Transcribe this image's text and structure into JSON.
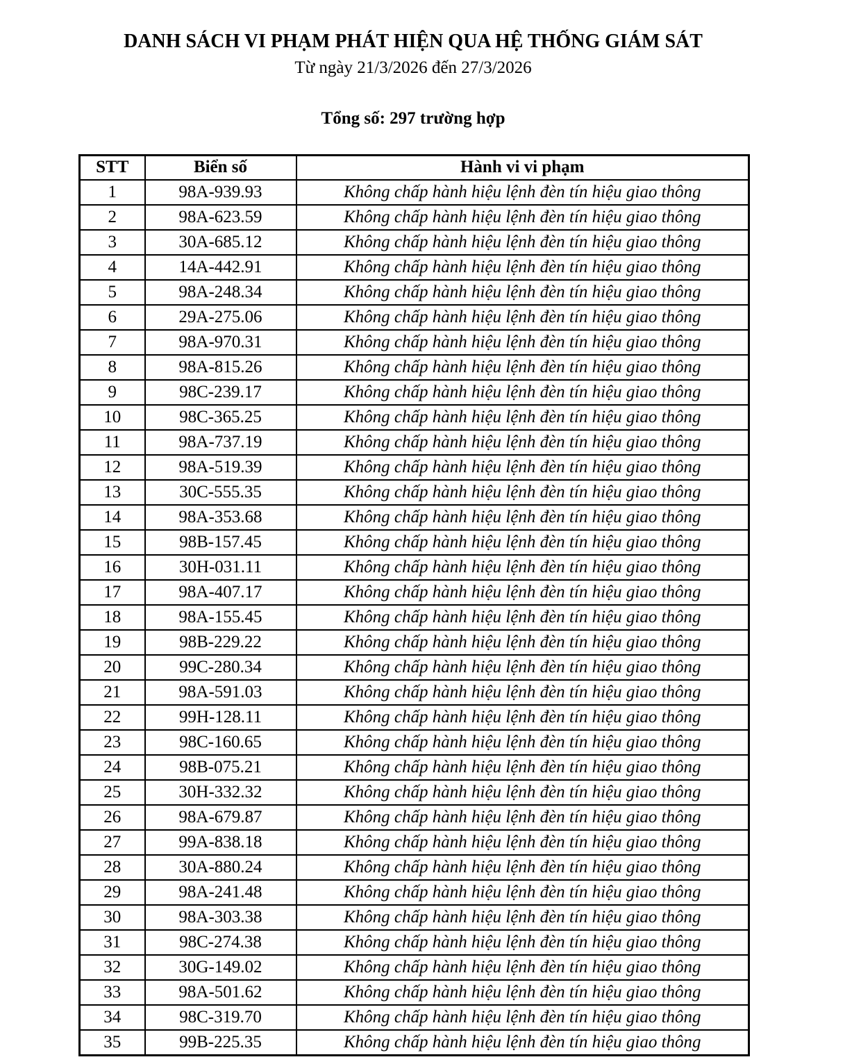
{
  "page": {
    "title": "DANH SÁCH VI PHẠM PHÁT HIỆN QUA HỆ THỐNG GIÁM SÁT",
    "date_range": "Từ ngày 21/3/2026 đến 27/3/2026",
    "total": "Tổng số: 297 trường hợp"
  },
  "table": {
    "columns": [
      "STT",
      "Biển số",
      "Hành vi vi phạm"
    ],
    "rows": [
      {
        "stt": "1",
        "plate": "98A-939.93",
        "violation": "Không chấp hành hiệu lệnh đèn tín hiệu giao thông"
      },
      {
        "stt": "2",
        "plate": "98A-623.59",
        "violation": "Không chấp hành hiệu lệnh đèn tín hiệu giao thông"
      },
      {
        "stt": "3",
        "plate": "30A-685.12",
        "violation": "Không chấp hành hiệu lệnh đèn tín hiệu giao thông"
      },
      {
        "stt": "4",
        "plate": "14A-442.91",
        "violation": "Không chấp hành hiệu lệnh đèn tín hiệu giao thông"
      },
      {
        "stt": "5",
        "plate": "98A-248.34",
        "violation": "Không chấp hành hiệu lệnh đèn tín hiệu giao thông"
      },
      {
        "stt": "6",
        "plate": "29A-275.06",
        "violation": "Không chấp hành hiệu lệnh đèn tín hiệu giao thông"
      },
      {
        "stt": "7",
        "plate": "98A-970.31",
        "violation": "Không chấp hành hiệu lệnh đèn tín hiệu giao thông"
      },
      {
        "stt": "8",
        "plate": "98A-815.26",
        "violation": "Không chấp hành hiệu lệnh đèn tín hiệu giao thông"
      },
      {
        "stt": "9",
        "plate": "98C-239.17",
        "violation": "Không chấp hành hiệu lệnh đèn tín hiệu giao thông"
      },
      {
        "stt": "10",
        "plate": "98C-365.25",
        "violation": "Không chấp hành hiệu lệnh đèn tín hiệu giao thông"
      },
      {
        "stt": "11",
        "plate": "98A-737.19",
        "violation": "Không chấp hành hiệu lệnh đèn tín hiệu giao thông"
      },
      {
        "stt": "12",
        "plate": "98A-519.39",
        "violation": "Không chấp hành hiệu lệnh đèn tín hiệu giao thông"
      },
      {
        "stt": "13",
        "plate": "30C-555.35",
        "violation": "Không chấp hành hiệu lệnh đèn tín hiệu giao thông"
      },
      {
        "stt": "14",
        "plate": "98A-353.68",
        "violation": "Không chấp hành hiệu lệnh đèn tín hiệu giao thông"
      },
      {
        "stt": "15",
        "plate": "98B-157.45",
        "violation": "Không chấp hành hiệu lệnh đèn tín hiệu giao thông"
      },
      {
        "stt": "16",
        "plate": "30H-031.11",
        "violation": "Không chấp hành hiệu lệnh đèn tín hiệu giao thông"
      },
      {
        "stt": "17",
        "plate": "98A-407.17",
        "violation": "Không chấp hành hiệu lệnh đèn tín hiệu giao thông"
      },
      {
        "stt": "18",
        "plate": "98A-155.45",
        "violation": "Không chấp hành hiệu lệnh đèn tín hiệu giao thông"
      },
      {
        "stt": "19",
        "plate": "98B-229.22",
        "violation": "Không chấp hành hiệu lệnh đèn tín hiệu giao thông"
      },
      {
        "stt": "20",
        "plate": "99C-280.34",
        "violation": "Không chấp hành hiệu lệnh đèn tín hiệu giao thông"
      },
      {
        "stt": "21",
        "plate": "98A-591.03",
        "violation": "Không chấp hành hiệu lệnh đèn tín hiệu giao thông"
      },
      {
        "stt": "22",
        "plate": "99H-128.11",
        "violation": "Không chấp hành hiệu lệnh đèn tín hiệu giao thông"
      },
      {
        "stt": "23",
        "plate": "98C-160.65",
        "violation": "Không chấp hành hiệu lệnh đèn tín hiệu giao thông"
      },
      {
        "stt": "24",
        "plate": "98B-075.21",
        "violation": "Không chấp hành hiệu lệnh đèn tín hiệu giao thông"
      },
      {
        "stt": "25",
        "plate": "30H-332.32",
        "violation": "Không chấp hành hiệu lệnh đèn tín hiệu giao thông"
      },
      {
        "stt": "26",
        "plate": "98A-679.87",
        "violation": "Không chấp hành hiệu lệnh đèn tín hiệu giao thông"
      },
      {
        "stt": "27",
        "plate": "99A-838.18",
        "violation": "Không chấp hành hiệu lệnh đèn tín hiệu giao thông"
      },
      {
        "stt": "28",
        "plate": "30A-880.24",
        "violation": "Không chấp hành hiệu lệnh đèn tín hiệu giao thông"
      },
      {
        "stt": "29",
        "plate": "98A-241.48",
        "violation": "Không chấp hành hiệu lệnh đèn tín hiệu giao thông"
      },
      {
        "stt": "30",
        "plate": "98A-303.38",
        "violation": "Không chấp hành hiệu lệnh đèn tín hiệu giao thông"
      },
      {
        "stt": "31",
        "plate": "98C-274.38",
        "violation": "Không chấp hành hiệu lệnh đèn tín hiệu giao thông"
      },
      {
        "stt": "32",
        "plate": "30G-149.02",
        "violation": "Không chấp hành hiệu lệnh đèn tín hiệu giao thông"
      },
      {
        "stt": "33",
        "plate": "98A-501.62",
        "violation": "Không chấp hành hiệu lệnh đèn tín hiệu giao thông"
      },
      {
        "stt": "34",
        "plate": "98C-319.70",
        "violation": "Không chấp hành hiệu lệnh đèn tín hiệu giao thông"
      },
      {
        "stt": "35",
        "plate": "99B-225.35",
        "violation": "Không chấp hành hiệu lệnh đèn tín hiệu giao thông"
      }
    ]
  }
}
